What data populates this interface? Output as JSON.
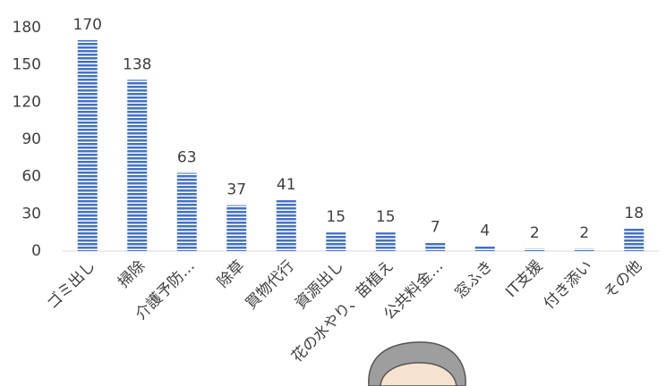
{
  "chart_data": {
    "type": "bar",
    "categories": [
      "ゴミ出し",
      "掃除",
      "介護予防…",
      "除草",
      "買物代行",
      "資源出し",
      "花の水やり、苗植え",
      "公共料金…",
      "窓ふき",
      "IT支援",
      "付き添い",
      "その他"
    ],
    "values": [
      170,
      138,
      63,
      37,
      41,
      15,
      15,
      7,
      4,
      2,
      2,
      18
    ],
    "color": "#4472c4",
    "ylim": [
      0,
      180
    ],
    "yticks": [
      0,
      30,
      60,
      90,
      120,
      150,
      180
    ],
    "grid": false
  }
}
